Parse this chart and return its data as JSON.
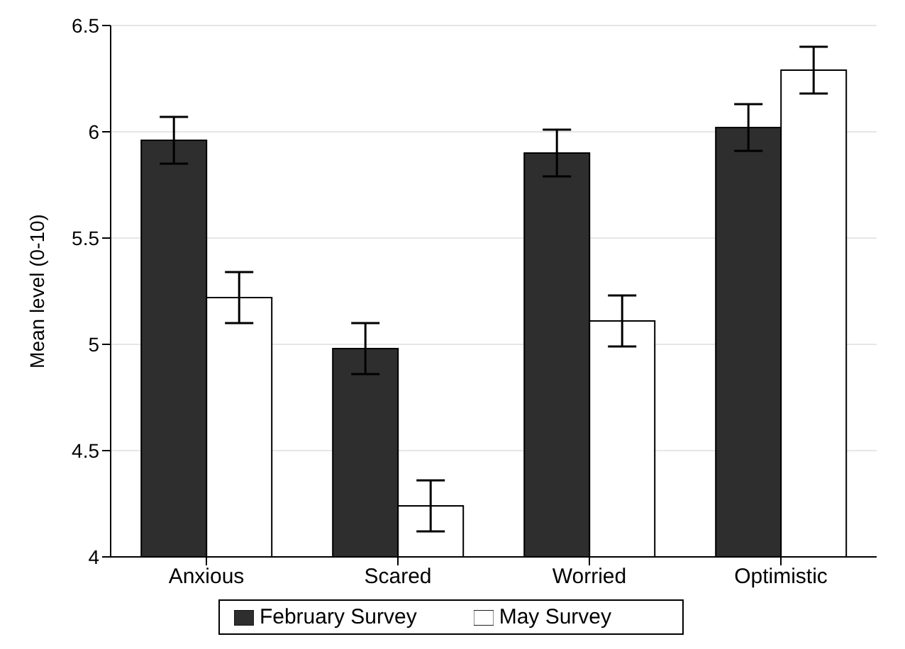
{
  "chart_data": {
    "type": "bar",
    "ylabel": "Mean level (0-10)",
    "categories": [
      "Anxious",
      "Scared",
      "Worried",
      "Optimistic"
    ],
    "series": [
      {
        "name": "February Survey",
        "color": "#2e2e2e",
        "values": [
          5.96,
          4.98,
          5.9,
          6.02
        ],
        "errors": [
          0.11,
          0.12,
          0.11,
          0.11
        ]
      },
      {
        "name": "May Survey",
        "color": "#ffffff",
        "values": [
          5.22,
          4.24,
          5.11,
          6.29
        ],
        "errors": [
          0.12,
          0.12,
          0.12,
          0.11
        ]
      }
    ],
    "ylim": [
      4,
      6.5
    ],
    "yticks": [
      4,
      4.5,
      5,
      5.5,
      6,
      6.5
    ],
    "grid": "y",
    "legend": "bottom"
  }
}
